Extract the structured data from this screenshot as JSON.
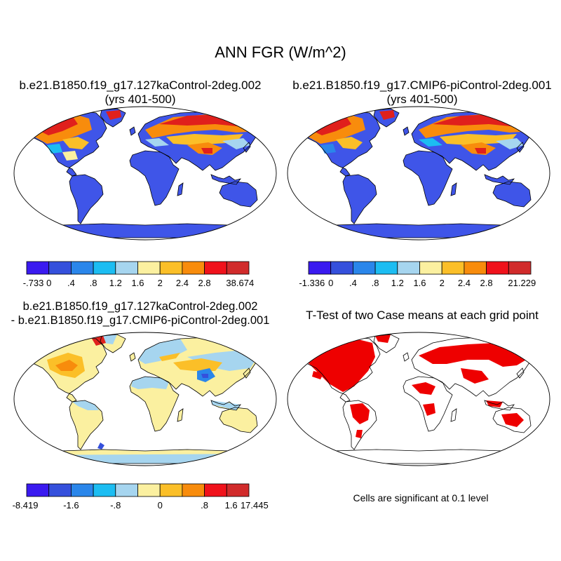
{
  "figure": {
    "title": "ANN FGR (W/m^2)"
  },
  "panels": [
    {
      "title_line1": "b.e21.B1850.f19_g17.127kaControl-2deg.002",
      "title_line2": "(yrs 401-500)",
      "colorbar": {
        "colors": [
          "#3a1af0",
          "#3550dc",
          "#2a86ea",
          "#1cbdf2",
          "#a6d5ef",
          "#fbf0a0",
          "#fbbf28",
          "#f88c0c",
          "#f0121b",
          "#d12b2b"
        ],
        "labels": [
          "-.733",
          "0",
          ".4",
          ".8",
          "1.2",
          "1.6",
          "2",
          "2.4",
          "2.8",
          "38.674"
        ]
      }
    },
    {
      "title_line1": "b.e21.B1850.f19_g17.CMIP6-piControl-2deg.001",
      "title_line2": "(yrs 401-500)",
      "colorbar": {
        "colors": [
          "#3a1af0",
          "#3550dc",
          "#2a86ea",
          "#1cbdf2",
          "#a6d5ef",
          "#fbf0a0",
          "#fbbf28",
          "#f88c0c",
          "#f0121b",
          "#d12b2b"
        ],
        "labels": [
          "-1.336",
          "0",
          ".4",
          ".8",
          "1.2",
          "1.6",
          "2",
          "2.4",
          "2.8",
          "21.229"
        ]
      }
    },
    {
      "title_line1": "b.e21.B1850.f19_g17.127kaControl-2deg.002",
      "title_line2": "- b.e21.B1850.f19_g17.CMIP6-piControl-2deg.001",
      "colorbar": {
        "colors": [
          "#3a1af0",
          "#3550dc",
          "#2a86ea",
          "#1cbdf2",
          "#a6d5ef",
          "#fbf0a0",
          "#fbbf28",
          "#f88c0c",
          "#f0121b",
          "#d12b2b"
        ],
        "labels": [
          "-8.419",
          "-1.6",
          "-.8",
          "0",
          ".8",
          "1.6",
          "17.445"
        ]
      }
    },
    {
      "title_line1": "T-Test of two Case means at each grid point",
      "note": "Cells are significant at 0.1 level"
    }
  ],
  "colors": {
    "land_mean": "#3f55e8",
    "arctic_high": "#e0201c",
    "diff_low": "#fbf0a0",
    "diff_ocean_edge": "#a6d5ef",
    "significant": "#ee0000"
  }
}
